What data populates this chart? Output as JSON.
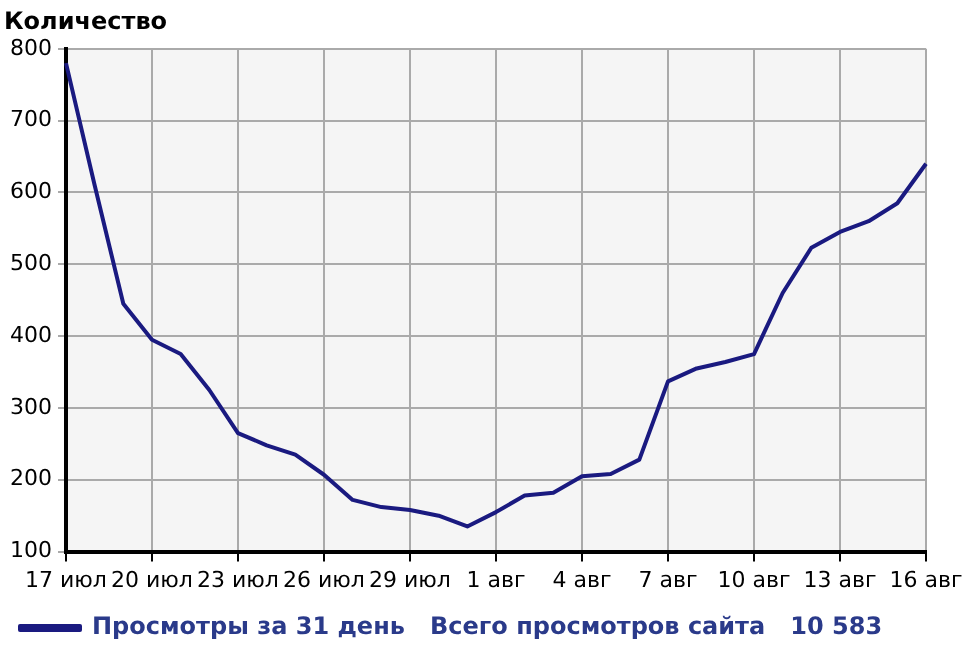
{
  "chart_data": {
    "type": "line",
    "ylabel": "Количество",
    "categories": [
      "17 июл",
      null,
      null,
      "20 июл",
      null,
      null,
      "23 июл",
      null,
      null,
      "26 июл",
      null,
      null,
      "29 июл",
      null,
      null,
      "1 авг",
      null,
      null,
      "4 авг",
      null,
      null,
      "7 авг",
      null,
      null,
      "10 авг",
      null,
      null,
      "13 авг",
      null,
      null,
      "16 авг"
    ],
    "series": [
      {
        "name": "Просмотры за 31 день",
        "color": "#1a1a80",
        "values": [
          780,
          610,
          445,
          395,
          375,
          325,
          265,
          248,
          235,
          207,
          172,
          162,
          158,
          150,
          135,
          155,
          178,
          182,
          205,
          208,
          228,
          337,
          355,
          364,
          375,
          460,
          523,
          545,
          560,
          585,
          640
        ]
      }
    ],
    "ylim": [
      100,
      800
    ],
    "yticks": [
      100,
      200,
      300,
      400,
      500,
      600,
      700,
      800
    ],
    "grid": true,
    "legend": "bottom left",
    "marker": "none",
    "line_style": "solid",
    "annotations": [
      "Всего просмотров сайта   10 583"
    ]
  }
}
